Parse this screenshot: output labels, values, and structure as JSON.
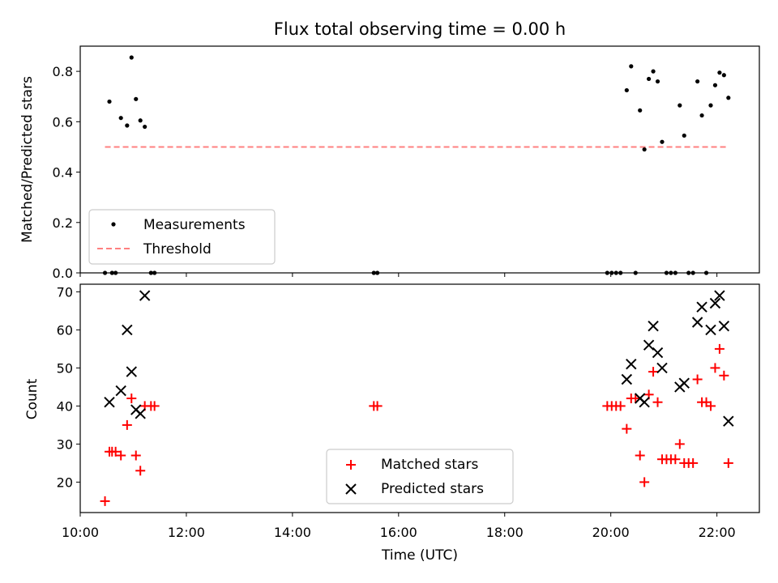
{
  "chart_data": [
    {
      "type": "scatter",
      "title": "Flux total observing time = 0.00 h",
      "xlabel": "",
      "ylabel": "Matched/Predicted stars",
      "xlim": [
        "10:00",
        "22:48"
      ],
      "ylim": [
        0,
        0.9
      ],
      "yticks": [
        "0.0",
        "0.2",
        "0.4",
        "0.6",
        "0.8"
      ],
      "legend_position": "lower-left",
      "series": [
        {
          "name": "Measurements",
          "marker": "dot",
          "color": "#000000",
          "points": [
            [
              "10:28",
              0.0
            ],
            [
              "10:33",
              0.68
            ],
            [
              "10:36",
              0.0
            ],
            [
              "10:40",
              0.0
            ],
            [
              "10:46",
              0.615
            ],
            [
              "10:53",
              0.585
            ],
            [
              "10:58",
              0.855
            ],
            [
              "11:03",
              0.69
            ],
            [
              "11:08",
              0.605
            ],
            [
              "11:13",
              0.58
            ],
            [
              "11:20",
              0.0
            ],
            [
              "11:24",
              0.0
            ],
            [
              "15:32",
              0.0
            ],
            [
              "15:36",
              0.0
            ],
            [
              "19:56",
              0.0
            ],
            [
              "20:01",
              0.0
            ],
            [
              "20:06",
              0.0
            ],
            [
              "20:11",
              0.0
            ],
            [
              "20:18",
              0.725
            ],
            [
              "20:23",
              0.82
            ],
            [
              "20:28",
              0.0
            ],
            [
              "20:33",
              0.645
            ],
            [
              "20:38",
              0.49
            ],
            [
              "20:43",
              0.77
            ],
            [
              "20:48",
              0.8
            ],
            [
              "20:53",
              0.76
            ],
            [
              "20:58",
              0.52
            ],
            [
              "21:03",
              0.0
            ],
            [
              "21:08",
              0.0
            ],
            [
              "21:13",
              0.0
            ],
            [
              "21:18",
              0.665
            ],
            [
              "21:23",
              0.545
            ],
            [
              "21:28",
              0.0
            ],
            [
              "21:33",
              0.0
            ],
            [
              "21:38",
              0.76
            ],
            [
              "21:43",
              0.625
            ],
            [
              "21:48",
              0.0
            ],
            [
              "21:53",
              0.665
            ],
            [
              "21:58",
              0.745
            ],
            [
              "22:03",
              0.795
            ],
            [
              "22:08",
              0.785
            ],
            [
              "22:13",
              0.695
            ]
          ]
        },
        {
          "name": "Threshold",
          "type": "line",
          "style": "dashed",
          "color": "#ff8080",
          "points": [
            [
              "10:28",
              0.5
            ],
            [
              "22:13",
              0.5
            ]
          ]
        }
      ]
    },
    {
      "type": "scatter",
      "title": "",
      "xlabel": "Time (UTC)",
      "ylabel": "Count",
      "xlim": [
        "10:00",
        "22:48"
      ],
      "ylim": [
        12,
        72
      ],
      "xticks": [
        "10:00",
        "12:00",
        "14:00",
        "16:00",
        "18:00",
        "20:00",
        "22:00"
      ],
      "yticks": [
        "20",
        "30",
        "40",
        "50",
        "60",
        "70"
      ],
      "legend_position": "lower-center",
      "series": [
        {
          "name": "Matched stars",
          "marker": "plus",
          "color": "#ff0000",
          "points": [
            [
              "10:28",
              15
            ],
            [
              "10:33",
              28
            ],
            [
              "10:36",
              28
            ],
            [
              "10:40",
              28
            ],
            [
              "10:46",
              27
            ],
            [
              "10:53",
              35
            ],
            [
              "10:58",
              42
            ],
            [
              "11:03",
              27
            ],
            [
              "11:08",
              23
            ],
            [
              "11:13",
              40
            ],
            [
              "11:20",
              40
            ],
            [
              "11:24",
              40
            ],
            [
              "15:32",
              40
            ],
            [
              "15:36",
              40
            ],
            [
              "19:56",
              40
            ],
            [
              "20:01",
              40
            ],
            [
              "20:06",
              40
            ],
            [
              "20:11",
              40
            ],
            [
              "20:18",
              34
            ],
            [
              "20:23",
              42
            ],
            [
              "20:28",
              42
            ],
            [
              "20:33",
              27
            ],
            [
              "20:38",
              20
            ],
            [
              "20:43",
              43
            ],
            [
              "20:48",
              49
            ],
            [
              "20:53",
              41
            ],
            [
              "20:58",
              26
            ],
            [
              "21:03",
              26
            ],
            [
              "21:08",
              26
            ],
            [
              "21:13",
              26
            ],
            [
              "21:18",
              30
            ],
            [
              "21:23",
              25
            ],
            [
              "21:28",
              25
            ],
            [
              "21:33",
              25
            ],
            [
              "21:38",
              47
            ],
            [
              "21:43",
              41
            ],
            [
              "21:48",
              41
            ],
            [
              "21:53",
              40
            ],
            [
              "21:58",
              50
            ],
            [
              "22:03",
              55
            ],
            [
              "22:08",
              48
            ],
            [
              "22:13",
              25
            ]
          ]
        },
        {
          "name": "Predicted stars",
          "marker": "x",
          "color": "#000000",
          "points": [
            [
              "10:33",
              41
            ],
            [
              "10:46",
              44
            ],
            [
              "10:53",
              60
            ],
            [
              "10:58",
              49
            ],
            [
              "11:03",
              39
            ],
            [
              "11:08",
              38
            ],
            [
              "11:13",
              69
            ],
            [
              "20:18",
              47
            ],
            [
              "20:23",
              51
            ],
            [
              "20:33",
              42
            ],
            [
              "20:38",
              41
            ],
            [
              "20:43",
              56
            ],
            [
              "20:48",
              61
            ],
            [
              "20:53",
              54
            ],
            [
              "20:58",
              50
            ],
            [
              "21:18",
              45
            ],
            [
              "21:23",
              46
            ],
            [
              "21:38",
              62
            ],
            [
              "21:43",
              66
            ],
            [
              "21:53",
              60
            ],
            [
              "21:58",
              67
            ],
            [
              "22:03",
              69
            ],
            [
              "22:08",
              61
            ],
            [
              "22:13",
              36
            ]
          ]
        }
      ]
    }
  ]
}
